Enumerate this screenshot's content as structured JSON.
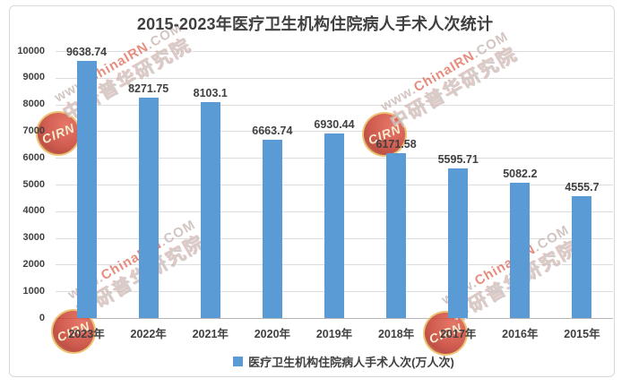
{
  "chart_data": {
    "type": "bar",
    "title": "2015-2023年医疗卫生机构住院病人手术人次统计",
    "categories": [
      "2023年",
      "2022年",
      "2021年",
      "2020年",
      "2019年",
      "2018年",
      "2017年",
      "2016年",
      "2015年"
    ],
    "values": [
      9638.74,
      8271.75,
      8103.1,
      6663.74,
      6930.44,
      6171.58,
      5595.71,
      5082.2,
      4555.7
    ],
    "value_labels": [
      "9638.74",
      "8271.75",
      "8103.1",
      "6663.74",
      "6930.44",
      "6171.58",
      "5595.71",
      "5082.2",
      "4555.7"
    ],
    "legend": "医疗卫生机构住院病人手术人次(万人次)",
    "xlabel": "",
    "ylabel": "",
    "ylim": [
      0,
      10000
    ],
    "y_tick_step": 1000,
    "y_tick_labels": [
      "10000",
      "9000",
      "8000",
      "7000",
      "6000",
      "5000",
      "4000",
      "3000",
      "2000",
      "1000",
      "0"
    ],
    "grid": true,
    "legend_position": "bottom",
    "bar_color": "#5B9BD5"
  },
  "watermark": {
    "url_prefix": "www.",
    "url_brand": "ChinaIRN",
    "url_suffix": ".COM",
    "org": "中研普华研究院",
    "badge": "CIRN"
  },
  "colors": {
    "bar": "#5B9BD5",
    "title_text": "#404040",
    "label_text": "#404040",
    "gridline": "#DCDCDC",
    "axis_line": "#B5B5B5",
    "frame_border": "#D9D9D9",
    "watermark_red": "#E2705F",
    "watermark_gray": "#C6C2C0"
  }
}
